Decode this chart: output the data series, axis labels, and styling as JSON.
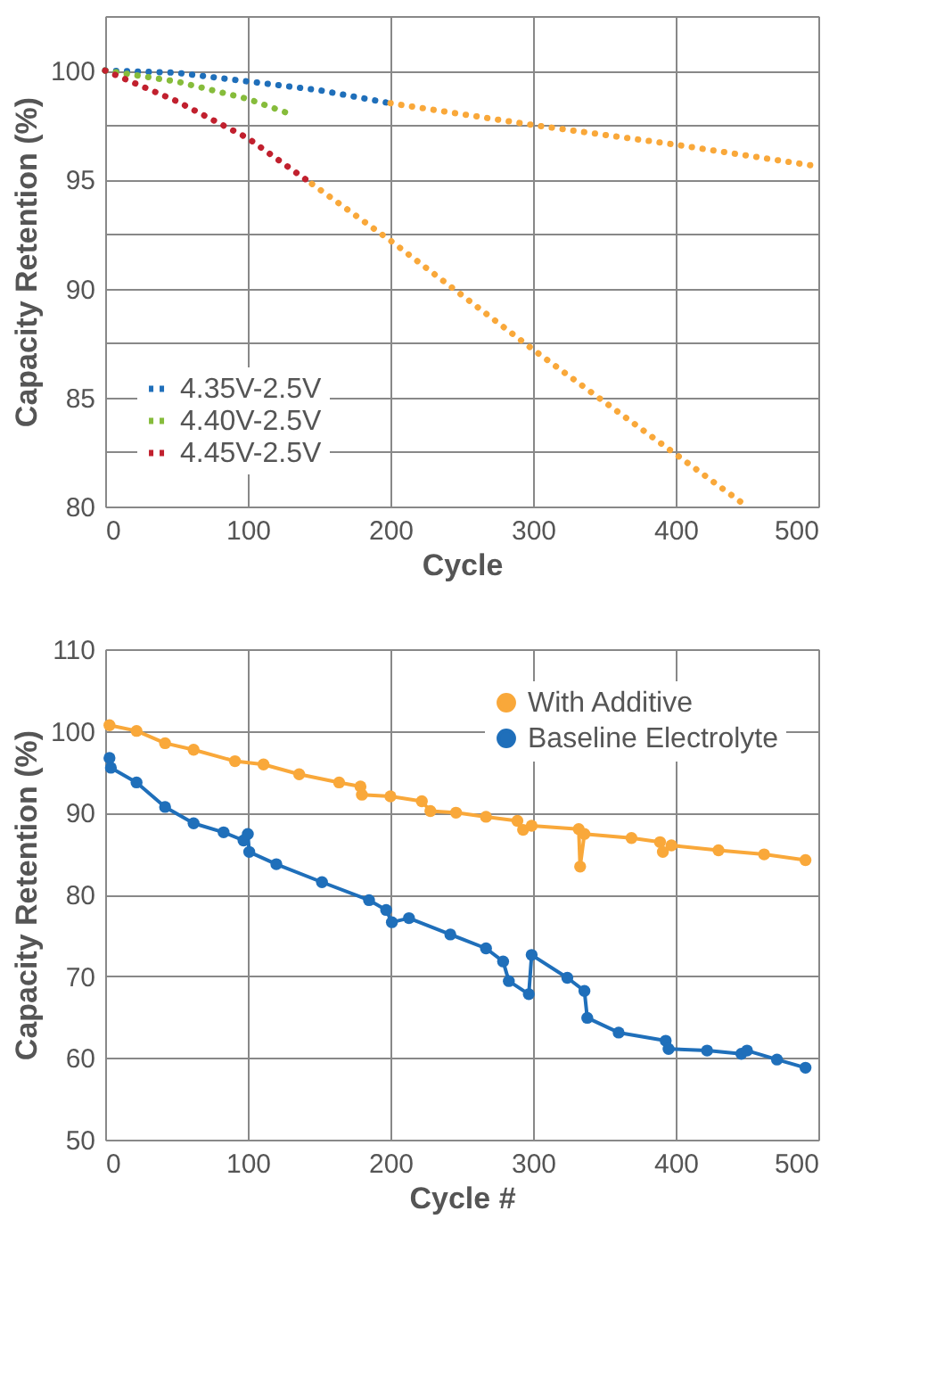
{
  "chart_data": [
    {
      "type": "line",
      "xlabel": "Cycle",
      "ylabel": "Capacity Retention (%)",
      "xlim": [
        0,
        500
      ],
      "ylim": [
        80,
        102.5
      ],
      "xticks": [
        0,
        100,
        200,
        300,
        400,
        500
      ],
      "yticks": [
        80,
        {
          "value": 82.5,
          "label": null
        },
        85,
        {
          "value": 87.5,
          "label": null
        },
        90,
        {
          "value": 92.5,
          "label": null
        },
        95,
        {
          "value": 97.5,
          "label": null
        },
        100,
        {
          "value": 102.5,
          "label": null
        }
      ],
      "grid": true,
      "legend": "bottom left",
      "line_style": "dotted",
      "marker": "none",
      "series": [
        {
          "name": "4.35V-2.5V",
          "color": "#1f6fba",
          "x": [
            0,
            50,
            100,
            150,
            200
          ],
          "values": [
            100,
            99.9,
            99.5,
            99.1,
            98.5
          ]
        },
        {
          "name": "4.40V-2.5V",
          "color": "#86bc3b",
          "x": [
            0,
            50,
            100,
            130
          ],
          "values": [
            100,
            99.5,
            98.7,
            98.0
          ]
        },
        {
          "name": "4.45V-2.5V",
          "color": "#c1202e",
          "x": [
            0,
            50,
            100,
            145
          ],
          "values": [
            100,
            98.6,
            96.9,
            94.8
          ]
        },
        {
          "color": "#f9a83a",
          "x": [
            200,
            300,
            400,
            500
          ],
          "values": [
            98.5,
            97.5,
            96.6,
            95.6
          ]
        },
        {
          "color": "#f9a83a",
          "x": [
            145,
            200,
            300,
            400,
            450
          ],
          "values": [
            94.8,
            92.2,
            87.2,
            82.4,
            80.0
          ]
        }
      ]
    },
    {
      "type": "line",
      "xlabel": "Cycle #",
      "ylabel": "Capacity Retention (%)",
      "xlim": [
        0,
        500
      ],
      "ylim": [
        50,
        110
      ],
      "xticks": [
        0,
        100,
        200,
        300,
        400,
        500
      ],
      "yticks": [
        50,
        60,
        70,
        80,
        90,
        100,
        110
      ],
      "grid": true,
      "legend": "top right",
      "line_style": "solid",
      "marker": "circle",
      "series": [
        {
          "name": "With Additive",
          "color": "#f9a83a",
          "x": [
            3,
            22,
            42,
            62,
            91,
            111,
            136,
            164,
            179,
            180,
            200,
            222,
            228,
            246,
            267,
            289,
            293,
            299,
            332,
            333,
            336,
            369,
            389,
            391,
            397,
            430,
            462,
            491
          ],
          "values": [
            100.7,
            100.0,
            98.5,
            97.7,
            96.3,
            95.9,
            94.7,
            93.7,
            93.2,
            92.2,
            92.0,
            91.4,
            90.2,
            90.0,
            89.5,
            89.0,
            87.9,
            88.4,
            88.0,
            83.4,
            87.4,
            86.9,
            86.4,
            85.2,
            86.0,
            85.4,
            84.9,
            84.2
          ]
        },
        {
          "name": "Baseline Electrolyte",
          "color": "#1f6fba",
          "x": [
            3,
            4,
            22,
            42,
            62,
            83,
            97,
            100,
            101,
            120,
            152,
            185,
            197,
            201,
            213,
            242,
            267,
            279,
            283,
            297,
            299,
            324,
            336,
            338,
            360,
            393,
            395,
            422,
            446,
            450,
            471,
            491
          ],
          "values": [
            96.7,
            95.5,
            93.7,
            90.7,
            88.7,
            87.6,
            86.6,
            87.4,
            85.2,
            83.7,
            81.5,
            79.3,
            78.1,
            76.6,
            77.1,
            75.1,
            73.4,
            71.8,
            69.4,
            67.8,
            72.6,
            69.8,
            68.2,
            64.9,
            63.1,
            62.1,
            61.1,
            60.9,
            60.5,
            60.9,
            59.8,
            58.8
          ]
        }
      ]
    }
  ]
}
